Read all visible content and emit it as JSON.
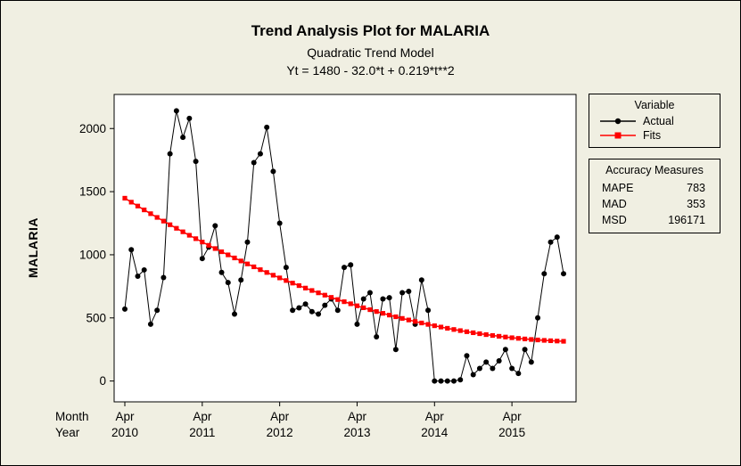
{
  "chart_data": {
    "type": "line",
    "title": "Trend Analysis Plot for MALARIA",
    "subtitle": "Quadratic Trend Model",
    "equation": "Yt = 1480 - 32.0*t + 0.219*t**2",
    "ylabel": "MALARIA",
    "yticks": [
      0,
      500,
      1000,
      1500,
      2000
    ],
    "ylim": [
      -165,
      2270
    ],
    "x_axis": {
      "month_label": "Month",
      "year_label": "Year",
      "tick_month": "Apr",
      "tick_years": [
        "2010",
        "2011",
        "2012",
        "2013",
        "2014",
        "2015"
      ],
      "tick_positions": [
        1,
        13,
        25,
        37,
        49,
        61
      ]
    },
    "series": [
      {
        "name": "Actual",
        "color": "#000000",
        "marker": "circle",
        "values": [
          570,
          1040,
          830,
          880,
          450,
          560,
          820,
          1800,
          2140,
          1930,
          2080,
          1740,
          970,
          1060,
          1230,
          860,
          780,
          530,
          800,
          1100,
          1730,
          1800,
          2010,
          1660,
          1250,
          900,
          560,
          580,
          610,
          550,
          530,
          600,
          650,
          560,
          900,
          920,
          450,
          650,
          700,
          350,
          650,
          660,
          250,
          700,
          710,
          450,
          800,
          560,
          0,
          0,
          0,
          0,
          10,
          200,
          50,
          100,
          150,
          100,
          160,
          250,
          100,
          60,
          250,
          150,
          500,
          850,
          1100,
          1140,
          850
        ]
      },
      {
        "name": "Fits",
        "color": "#FF0000",
        "marker": "square",
        "trend_coefficients": {
          "b0": 1480,
          "b1": -32.0,
          "b2": 0.219
        }
      }
    ],
    "legend": {
      "title": "Variable"
    },
    "accuracy": {
      "title": "Accuracy Measures",
      "rows": [
        [
          "MAPE",
          "783"
        ],
        [
          "MAD",
          "353"
        ],
        [
          "MSD",
          "196171"
        ]
      ]
    },
    "colors": {
      "background": "#F0EFE2",
      "plot_background": "#FFFFFF",
      "axis": "#000000"
    }
  }
}
